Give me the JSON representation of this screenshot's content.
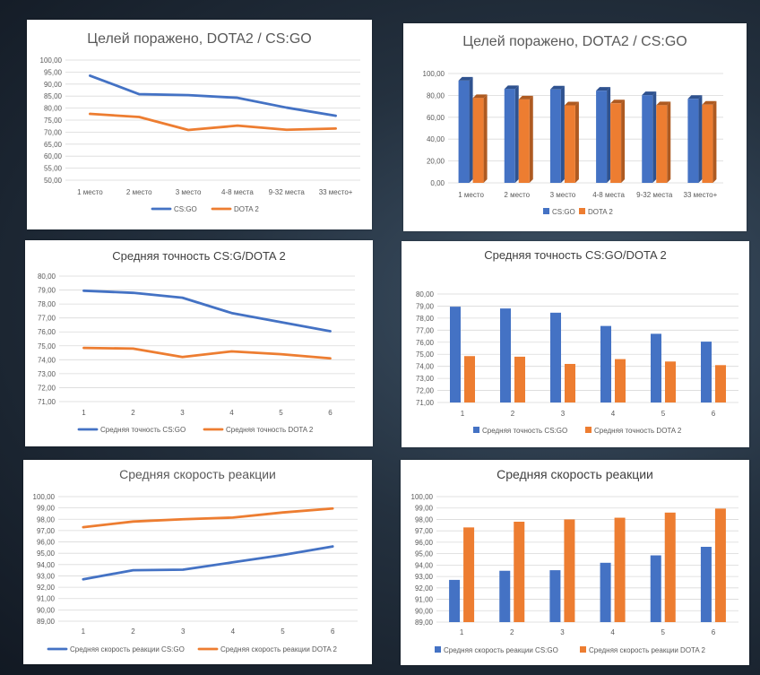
{
  "charts": {
    "c1": {
      "type": "line",
      "title": "Целей поражено, DOTA2 / CS:GO",
      "categories": [
        "1 место",
        "2 место",
        "3 место",
        "4-8 места",
        "9-32 места",
        "33 место+"
      ],
      "ylim": [
        50,
        100
      ],
      "ystep": 5,
      "y_ticks": [
        "50,00",
        "55,00",
        "60,00",
        "65,00",
        "70,00",
        "75,00",
        "80,00",
        "85,00",
        "90,00",
        "95,00",
        "100,00"
      ],
      "series": [
        {
          "name": "CS:GO",
          "values": [
            93.5,
            85.8,
            85.4,
            84.3,
            80.2,
            76.8
          ]
        },
        {
          "name": "DOTA 2",
          "values": [
            77.6,
            76.3,
            70.9,
            72.7,
            71.0,
            71.5
          ]
        }
      ]
    },
    "c2": {
      "type": "bar",
      "title": "Целей поражено, DOTA2 / CS:GO",
      "categories": [
        "1 место",
        "2 место",
        "3 место",
        "4-8 места",
        "9-32 места",
        "33 место+"
      ],
      "ylim": [
        0,
        100
      ],
      "ystep": 20,
      "y_ticks": [
        "0,00",
        "20,00",
        "40,00",
        "60,00",
        "80,00",
        "100,00"
      ],
      "series": [
        {
          "name": "CS:GO",
          "values": [
            93.5,
            85.8,
            85.4,
            84.3,
            80.2,
            76.8
          ]
        },
        {
          "name": "DOTA 2",
          "values": [
            77.6,
            76.3,
            70.9,
            72.7,
            71.0,
            71.5
          ]
        }
      ]
    },
    "c3": {
      "type": "line",
      "title": "Средняя точность CS:G/DOTA 2",
      "categories": [
        "1",
        "2",
        "3",
        "4",
        "5",
        "6"
      ],
      "ylim": [
        71,
        80
      ],
      "ystep": 1,
      "y_ticks": [
        "71,00",
        "72,00",
        "73,00",
        "74,00",
        "75,00",
        "76,00",
        "77,00",
        "78,00",
        "79,00",
        "80,00"
      ],
      "series": [
        {
          "name": "Средняя точность CS:GO",
          "values": [
            78.95,
            78.8,
            78.45,
            77.35,
            76.7,
            76.05
          ]
        },
        {
          "name": "Средняя точность DOTA 2",
          "values": [
            74.85,
            74.8,
            74.2,
            74.6,
            74.4,
            74.1
          ]
        }
      ]
    },
    "c4": {
      "type": "bar",
      "title": "Средняя точность CS:GO/DOTA 2",
      "categories": [
        "1",
        "2",
        "3",
        "4",
        "5",
        "6"
      ],
      "ylim": [
        71,
        80
      ],
      "ystep": 1,
      "y_ticks": [
        "71,00",
        "72,00",
        "73,00",
        "74,00",
        "75,00",
        "76,00",
        "77,00",
        "78,00",
        "79,00",
        "80,00"
      ],
      "series": [
        {
          "name": "Средняя точность CS:GO",
          "values": [
            78.95,
            78.8,
            78.45,
            77.35,
            76.7,
            76.05
          ]
        },
        {
          "name": "Средняя точность DOTA 2",
          "values": [
            74.85,
            74.8,
            74.2,
            74.6,
            74.4,
            74.1
          ]
        }
      ]
    },
    "c5": {
      "type": "line",
      "title": "Средняя скорость реакции",
      "categories": [
        "1",
        "2",
        "3",
        "4",
        "5",
        "6"
      ],
      "ylim": [
        89,
        100
      ],
      "ystep": 1,
      "y_ticks": [
        "89,00",
        "90,00",
        "91,00",
        "92,00",
        "93,00",
        "94,00",
        "95,00",
        "96,00",
        "97,00",
        "98,00",
        "99,00",
        "100,00"
      ],
      "series": [
        {
          "name": "Средняя скорость реакции CS:GO",
          "values": [
            92.7,
            93.5,
            93.55,
            94.2,
            94.85,
            95.6
          ]
        },
        {
          "name": "Средняя скорость реакции DOTA 2",
          "values": [
            97.3,
            97.8,
            98.0,
            98.15,
            98.6,
            98.95
          ]
        }
      ]
    },
    "c6": {
      "type": "bar",
      "title": "Средняя скорость реакции",
      "categories": [
        "1",
        "2",
        "3",
        "4",
        "5",
        "6"
      ],
      "ylim": [
        89,
        100
      ],
      "ystep": 1,
      "y_ticks": [
        "89,00",
        "90,00",
        "91,00",
        "92,00",
        "93,00",
        "94,00",
        "95,00",
        "96,00",
        "97,00",
        "98,00",
        "99,00",
        "100,00"
      ],
      "series": [
        {
          "name": "Средняя скорость реакции CS:GO",
          "values": [
            92.7,
            93.5,
            93.55,
            94.2,
            94.85,
            95.6
          ]
        },
        {
          "name": "Средняя скорость реакции DOTA 2",
          "values": [
            97.3,
            97.8,
            98.0,
            98.15,
            98.6,
            98.95
          ]
        }
      ]
    }
  },
  "colors": {
    "csgo": "#4472c4",
    "dota": "#ed7d31",
    "csgo_3d": "#2f528f",
    "dota_3d": "#ae5a21",
    "grid": "#d9d9d9",
    "text": "#595959"
  }
}
